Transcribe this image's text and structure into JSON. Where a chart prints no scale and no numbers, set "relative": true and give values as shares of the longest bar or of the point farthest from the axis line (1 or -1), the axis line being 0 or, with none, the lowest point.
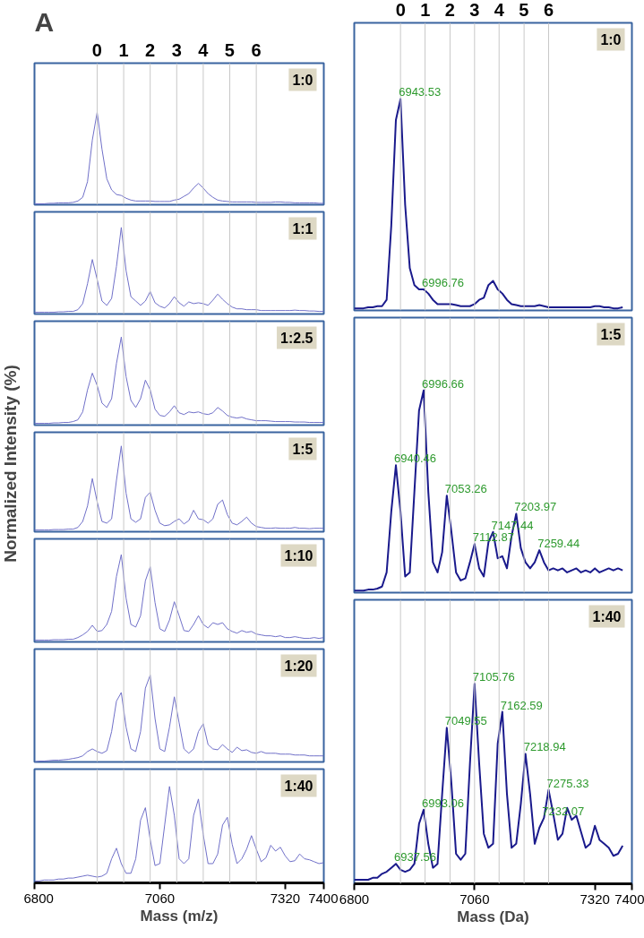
{
  "chart_data": [
    {
      "type": "line",
      "relative": true,
      "title": "A",
      "color": "#7070c8",
      "xlim": [
        6800,
        7400
      ],
      "tick_labels": "x2",
      "x2lim": [
        -2.36,
        8.55
      ],
      "x2ticks": [
        0,
        1,
        2,
        3,
        4,
        5,
        6
      ],
      "annotations": [
        "1:0"
      ],
      "ref_lines": [
        {
          "axis": "x",
          "value": 6930
        },
        {
          "axis": "x",
          "value": 6985
        },
        {
          "axis": "x",
          "value": 7040
        },
        {
          "axis": "x",
          "value": 7095
        },
        {
          "axis": "x",
          "value": 7150
        },
        {
          "axis": "x",
          "value": 7205
        },
        {
          "axis": "x",
          "value": 7260
        }
      ],
      "x": [
        6800,
        6810,
        6820,
        6830,
        6840,
        6850,
        6860,
        6870,
        6880,
        6890,
        6900,
        6910,
        6920,
        6930,
        6940,
        6950,
        6960,
        6970,
        6980,
        6990,
        7000,
        7010,
        7020,
        7030,
        7040,
        7050,
        7060,
        7070,
        7080,
        7090,
        7100,
        7110,
        7120,
        7130,
        7140,
        7150,
        7160,
        7170,
        7180,
        7190,
        7200,
        7210,
        7220,
        7230,
        7240,
        7250,
        7260,
        7270,
        7280,
        7290,
        7300,
        7310,
        7320,
        7330,
        7340,
        7350,
        7360,
        7370,
        7380,
        7390,
        7400
      ],
      "values": [
        0.01,
        0.01,
        0.01,
        0.015,
        0.015,
        0.02,
        0.02,
        0.02,
        0.025,
        0.04,
        0.08,
        0.25,
        0.7,
        1.0,
        0.6,
        0.28,
        0.16,
        0.11,
        0.1,
        0.07,
        0.05,
        0.04,
        0.04,
        0.04,
        0.04,
        0.035,
        0.035,
        0.035,
        0.035,
        0.05,
        0.06,
        0.09,
        0.12,
        0.18,
        0.23,
        0.18,
        0.12,
        0.08,
        0.05,
        0.04,
        0.035,
        0.03,
        0.03,
        0.03,
        0.03,
        0.03,
        0.025,
        0.025,
        0.025,
        0.025,
        0.03,
        0.03,
        0.025,
        0.025,
        0.02,
        0.02,
        0.02,
        0.02,
        0.02,
        0.015,
        0.015
      ]
    },
    {
      "type": "line",
      "relative": true,
      "color": "#7070c8",
      "xlim": [
        6800,
        7400
      ],
      "tick_labels": false,
      "annotations": [
        "1:1"
      ],
      "ref_lines": [
        {
          "axis": "x",
          "value": 6930
        },
        {
          "axis": "x",
          "value": 6985
        },
        {
          "axis": "x",
          "value": 7040
        },
        {
          "axis": "x",
          "value": 7095
        },
        {
          "axis": "x",
          "value": 7150
        },
        {
          "axis": "x",
          "value": 7205
        },
        {
          "axis": "x",
          "value": 7260
        }
      ],
      "x": [
        6800,
        6810,
        6820,
        6830,
        6840,
        6850,
        6860,
        6870,
        6880,
        6890,
        6900,
        6910,
        6920,
        6930,
        6940,
        6950,
        6960,
        6970,
        6980,
        6990,
        7000,
        7010,
        7020,
        7030,
        7040,
        7050,
        7060,
        7070,
        7080,
        7090,
        7100,
        7110,
        7120,
        7130,
        7140,
        7150,
        7160,
        7170,
        7180,
        7190,
        7200,
        7210,
        7220,
        7230,
        7240,
        7250,
        7260,
        7270,
        7280,
        7290,
        7300,
        7310,
        7320,
        7330,
        7340,
        7350,
        7360,
        7370,
        7380,
        7390,
        7400
      ],
      "values": [
        0.02,
        0.02,
        0.02,
        0.02,
        0.02,
        0.025,
        0.025,
        0.03,
        0.03,
        0.05,
        0.12,
        0.35,
        0.63,
        0.4,
        0.15,
        0.1,
        0.18,
        0.55,
        1.0,
        0.5,
        0.2,
        0.15,
        0.1,
        0.15,
        0.26,
        0.13,
        0.09,
        0.07,
        0.12,
        0.2,
        0.13,
        0.09,
        0.14,
        0.12,
        0.13,
        0.12,
        0.1,
        0.16,
        0.23,
        0.17,
        0.12,
        0.08,
        0.06,
        0.06,
        0.05,
        0.05,
        0.05,
        0.04,
        0.04,
        0.04,
        0.04,
        0.04,
        0.04,
        0.04,
        0.045,
        0.04,
        0.04,
        0.035,
        0.035,
        0.03,
        0.03
      ]
    },
    {
      "type": "line",
      "relative": true,
      "color": "#7070c8",
      "xlim": [
        6800,
        7400
      ],
      "tick_labels": false,
      "annotations": [
        "1:2.5"
      ],
      "ref_lines": [
        {
          "axis": "x",
          "value": 6930
        },
        {
          "axis": "x",
          "value": 6985
        },
        {
          "axis": "x",
          "value": 7040
        },
        {
          "axis": "x",
          "value": 7095
        },
        {
          "axis": "x",
          "value": 7150
        },
        {
          "axis": "x",
          "value": 7205
        },
        {
          "axis": "x",
          "value": 7260
        }
      ],
      "x": [
        6800,
        6810,
        6820,
        6830,
        6840,
        6850,
        6860,
        6870,
        6880,
        6890,
        6900,
        6910,
        6920,
        6930,
        6940,
        6950,
        6960,
        6970,
        6980,
        6990,
        7000,
        7010,
        7020,
        7030,
        7040,
        7050,
        7060,
        7070,
        7080,
        7090,
        7100,
        7110,
        7120,
        7130,
        7140,
        7150,
        7160,
        7170,
        7180,
        7190,
        7200,
        7210,
        7220,
        7230,
        7240,
        7250,
        7260,
        7270,
        7280,
        7290,
        7300,
        7310,
        7320,
        7330,
        7340,
        7350,
        7360,
        7370,
        7380,
        7390,
        7400
      ],
      "values": [
        0.02,
        0.02,
        0.02,
        0.02,
        0.025,
        0.025,
        0.03,
        0.03,
        0.04,
        0.06,
        0.15,
        0.4,
        0.59,
        0.45,
        0.25,
        0.2,
        0.3,
        0.7,
        1.0,
        0.55,
        0.28,
        0.2,
        0.3,
        0.51,
        0.4,
        0.18,
        0.11,
        0.1,
        0.15,
        0.22,
        0.14,
        0.12,
        0.15,
        0.14,
        0.15,
        0.13,
        0.12,
        0.14,
        0.2,
        0.16,
        0.11,
        0.09,
        0.08,
        0.09,
        0.07,
        0.06,
        0.05,
        0.05,
        0.05,
        0.045,
        0.04,
        0.04,
        0.04,
        0.04,
        0.035,
        0.035,
        0.035,
        0.03,
        0.03,
        0.03,
        0.03
      ]
    },
    {
      "type": "line",
      "relative": true,
      "color": "#7070c8",
      "xlim": [
        6800,
        7400
      ],
      "tick_labels": false,
      "ylabel": "Normalized Intensity (%)",
      "annotations": [
        "1:5"
      ],
      "ref_lines": [
        {
          "axis": "x",
          "value": 6930
        },
        {
          "axis": "x",
          "value": 6985
        },
        {
          "axis": "x",
          "value": 7040
        },
        {
          "axis": "x",
          "value": 7095
        },
        {
          "axis": "x",
          "value": 7150
        },
        {
          "axis": "x",
          "value": 7205
        },
        {
          "axis": "x",
          "value": 7260
        }
      ],
      "x": [
        6800,
        6810,
        6820,
        6830,
        6840,
        6850,
        6860,
        6870,
        6880,
        6890,
        6900,
        6910,
        6920,
        6930,
        6940,
        6950,
        6960,
        6970,
        6980,
        6990,
        7000,
        7010,
        7020,
        7030,
        7040,
        7050,
        7060,
        7070,
        7080,
        7090,
        7100,
        7110,
        7120,
        7130,
        7140,
        7150,
        7160,
        7170,
        7180,
        7190,
        7200,
        7210,
        7220,
        7230,
        7240,
        7250,
        7260,
        7270,
        7280,
        7290,
        7300,
        7310,
        7320,
        7330,
        7340,
        7350,
        7360,
        7370,
        7380,
        7390,
        7400
      ],
      "values": [
        0.02,
        0.02,
        0.02,
        0.02,
        0.025,
        0.025,
        0.025,
        0.03,
        0.03,
        0.05,
        0.12,
        0.3,
        0.62,
        0.35,
        0.12,
        0.1,
        0.15,
        0.6,
        1.0,
        0.45,
        0.15,
        0.11,
        0.15,
        0.4,
        0.46,
        0.25,
        0.1,
        0.07,
        0.08,
        0.12,
        0.15,
        0.09,
        0.13,
        0.25,
        0.15,
        0.14,
        0.1,
        0.15,
        0.32,
        0.37,
        0.2,
        0.1,
        0.08,
        0.12,
        0.17,
        0.1,
        0.06,
        0.05,
        0.04,
        0.04,
        0.045,
        0.04,
        0.04,
        0.04,
        0.05,
        0.04,
        0.04,
        0.035,
        0.04,
        0.04,
        0.04
      ]
    },
    {
      "type": "line",
      "relative": true,
      "color": "#7070c8",
      "xlim": [
        6800,
        7400
      ],
      "tick_labels": false,
      "annotations": [
        "1:10"
      ],
      "ref_lines": [
        {
          "axis": "x",
          "value": 6930
        },
        {
          "axis": "x",
          "value": 6985
        },
        {
          "axis": "x",
          "value": 7040
        },
        {
          "axis": "x",
          "value": 7095
        },
        {
          "axis": "x",
          "value": 7150
        },
        {
          "axis": "x",
          "value": 7205
        },
        {
          "axis": "x",
          "value": 7260
        }
      ],
      "x": [
        6800,
        6810,
        6820,
        6830,
        6840,
        6850,
        6860,
        6870,
        6880,
        6890,
        6900,
        6910,
        6920,
        6930,
        6940,
        6950,
        6960,
        6970,
        6980,
        6990,
        7000,
        7010,
        7020,
        7030,
        7040,
        7050,
        7060,
        7070,
        7080,
        7090,
        7100,
        7110,
        7120,
        7130,
        7140,
        7150,
        7160,
        7170,
        7180,
        7190,
        7200,
        7210,
        7220,
        7230,
        7240,
        7250,
        7260,
        7270,
        7280,
        7290,
        7300,
        7310,
        7320,
        7330,
        7340,
        7350,
        7360,
        7370,
        7380,
        7390,
        7400
      ],
      "values": [
        0.02,
        0.02,
        0.02,
        0.02,
        0.025,
        0.025,
        0.025,
        0.03,
        0.03,
        0.05,
        0.08,
        0.12,
        0.19,
        0.12,
        0.13,
        0.2,
        0.35,
        0.75,
        1.0,
        0.5,
        0.2,
        0.17,
        0.3,
        0.7,
        0.86,
        0.45,
        0.15,
        0.12,
        0.25,
        0.46,
        0.3,
        0.13,
        0.12,
        0.2,
        0.3,
        0.2,
        0.16,
        0.22,
        0.2,
        0.22,
        0.15,
        0.12,
        0.1,
        0.13,
        0.11,
        0.12,
        0.09,
        0.08,
        0.07,
        0.07,
        0.06,
        0.07,
        0.05,
        0.05,
        0.06,
        0.05,
        0.04,
        0.04,
        0.05,
        0.04,
        0.05
      ]
    },
    {
      "type": "line",
      "relative": true,
      "color": "#7070c8",
      "xlim": [
        6800,
        7400
      ],
      "tick_labels": false,
      "annotations": [
        "1:20"
      ],
      "ref_lines": [
        {
          "axis": "x",
          "value": 6930
        },
        {
          "axis": "x",
          "value": 6985
        },
        {
          "axis": "x",
          "value": 7040
        },
        {
          "axis": "x",
          "value": 7095
        },
        {
          "axis": "x",
          "value": 7150
        },
        {
          "axis": "x",
          "value": 7205
        },
        {
          "axis": "x",
          "value": 7260
        }
      ],
      "x": [
        6800,
        6810,
        6820,
        6830,
        6840,
        6850,
        6860,
        6870,
        6880,
        6890,
        6900,
        6910,
        6920,
        6930,
        6940,
        6950,
        6960,
        6970,
        6980,
        6990,
        7000,
        7010,
        7020,
        7030,
        7040,
        7050,
        7060,
        7070,
        7080,
        7090,
        7100,
        7110,
        7120,
        7130,
        7140,
        7150,
        7160,
        7170,
        7180,
        7190,
        7200,
        7210,
        7220,
        7230,
        7240,
        7250,
        7260,
        7270,
        7280,
        7290,
        7300,
        7310,
        7320,
        7330,
        7340,
        7350,
        7360,
        7370,
        7380,
        7390,
        7400
      ],
      "values": [
        0.0,
        0.01,
        0.01,
        0.015,
        0.02,
        0.02,
        0.025,
        0.03,
        0.04,
        0.05,
        0.07,
        0.12,
        0.15,
        0.12,
        0.1,
        0.13,
        0.35,
        0.7,
        0.8,
        0.4,
        0.15,
        0.12,
        0.35,
        0.85,
        1.0,
        0.5,
        0.15,
        0.12,
        0.4,
        0.75,
        0.45,
        0.15,
        0.1,
        0.15,
        0.35,
        0.44,
        0.2,
        0.15,
        0.14,
        0.2,
        0.15,
        0.11,
        0.17,
        0.13,
        0.14,
        0.11,
        0.1,
        0.12,
        0.1,
        0.1,
        0.1,
        0.09,
        0.09,
        0.09,
        0.08,
        0.08,
        0.08,
        0.07,
        0.07,
        0.07,
        0.07
      ]
    },
    {
      "type": "line",
      "relative": true,
      "color": "#7070c8",
      "xlim": [
        6800,
        7400
      ],
      "xticks": [
        6800,
        7060,
        7320,
        7400
      ],
      "tick_labels": "x",
      "xlabel": "Mass (m/z)",
      "annotations": [
        "1:40"
      ],
      "ref_lines": [
        {
          "axis": "x",
          "value": 6930
        },
        {
          "axis": "x",
          "value": 6985
        },
        {
          "axis": "x",
          "value": 7040
        },
        {
          "axis": "x",
          "value": 7095
        },
        {
          "axis": "x",
          "value": 7150
        },
        {
          "axis": "x",
          "value": 7205
        },
        {
          "axis": "x",
          "value": 7260
        }
      ],
      "x": [
        6800,
        6810,
        6820,
        6830,
        6840,
        6850,
        6860,
        6870,
        6880,
        6890,
        6900,
        6910,
        6920,
        6930,
        6940,
        6950,
        6960,
        6970,
        6980,
        6990,
        7000,
        7010,
        7020,
        7030,
        7040,
        7050,
        7060,
        7070,
        7080,
        7090,
        7100,
        7110,
        7120,
        7130,
        7140,
        7150,
        7160,
        7170,
        7180,
        7190,
        7200,
        7210,
        7220,
        7230,
        7240,
        7250,
        7260,
        7270,
        7280,
        7290,
        7300,
        7310,
        7320,
        7330,
        7340,
        7350,
        7360,
        7370,
        7380,
        7390,
        7400
      ],
      "values": [
        0.02,
        0.02,
        0.03,
        0.03,
        0.03,
        0.04,
        0.04,
        0.05,
        0.05,
        0.06,
        0.07,
        0.08,
        0.07,
        0.06,
        0.07,
        0.1,
        0.25,
        0.36,
        0.2,
        0.1,
        0.1,
        0.25,
        0.65,
        0.78,
        0.45,
        0.18,
        0.2,
        0.6,
        1.0,
        0.7,
        0.25,
        0.2,
        0.25,
        0.7,
        0.87,
        0.5,
        0.2,
        0.2,
        0.3,
        0.6,
        0.68,
        0.4,
        0.2,
        0.25,
        0.35,
        0.49,
        0.35,
        0.22,
        0.26,
        0.39,
        0.33,
        0.37,
        0.28,
        0.22,
        0.23,
        0.3,
        0.25,
        0.24,
        0.22,
        0.2,
        0.21
      ]
    },
    {
      "type": "line",
      "relative": true,
      "color": "#1a1a8c",
      "xlim": [
        6800,
        7400
      ],
      "tick_labels": "x2",
      "x2lim": [
        -1.88,
        9.38
      ],
      "x2ticks": [
        0,
        1,
        2,
        3,
        4,
        5,
        6
      ],
      "annotations": [
        "1:0",
        {
          "text": "6943.53",
          "x": 6900,
          "y": 1.0
        },
        {
          "text": "6996.76",
          "x": 6950,
          "y": 0.1
        }
      ],
      "ref_lines": [
        {
          "axis": "x",
          "value": 6900
        },
        {
          "axis": "x",
          "value": 6953
        },
        {
          "axis": "x",
          "value": 7007
        },
        {
          "axis": "x",
          "value": 7060
        },
        {
          "axis": "x",
          "value": 7113
        },
        {
          "axis": "x",
          "value": 7167
        },
        {
          "axis": "x",
          "value": 7220
        }
      ],
      "x": [
        6800,
        6810,
        6820,
        6830,
        6840,
        6850,
        6860,
        6870,
        6880,
        6890,
        6900,
        6910,
        6920,
        6930,
        6940,
        6950,
        6960,
        6970,
        6980,
        6990,
        7000,
        7010,
        7020,
        7030,
        7040,
        7050,
        7060,
        7070,
        7080,
        7090,
        7100,
        7110,
        7120,
        7130,
        7140,
        7150,
        7160,
        7170,
        7180,
        7190,
        7200,
        7210,
        7220,
        7230,
        7240,
        7250,
        7260,
        7270,
        7280,
        7290,
        7300,
        7310,
        7320,
        7330,
        7340,
        7350,
        7360,
        7370,
        7380
      ],
      "values": [
        0.01,
        0.01,
        0.01,
        0.015,
        0.015,
        0.02,
        0.02,
        0.05,
        0.4,
        0.9,
        1.0,
        0.5,
        0.2,
        0.12,
        0.1,
        0.1,
        0.08,
        0.05,
        0.03,
        0.03,
        0.03,
        0.03,
        0.025,
        0.02,
        0.02,
        0.02,
        0.03,
        0.05,
        0.06,
        0.12,
        0.14,
        0.1,
        0.08,
        0.05,
        0.03,
        0.025,
        0.02,
        0.02,
        0.02,
        0.02,
        0.025,
        0.02,
        0.015,
        0.015,
        0.015,
        0.015,
        0.015,
        0.015,
        0.015,
        0.015,
        0.015,
        0.015,
        0.02,
        0.02,
        0.015,
        0.015,
        0.01,
        0.01,
        0.015
      ]
    },
    {
      "type": "line",
      "relative": true,
      "color": "#1a1a8c",
      "xlim": [
        6800,
        7400
      ],
      "tick_labels": false,
      "annotations": [
        "1:5",
        {
          "text": "6940.46",
          "x": 6890,
          "y": 0.63
        },
        {
          "text": "6996.66",
          "x": 6950,
          "y": 1.0
        },
        {
          "text": "7053.26",
          "x": 7000,
          "y": 0.48
        },
        {
          "text": "7112.87",
          "x": 7060,
          "y": 0.24
        },
        {
          "text": "7147.44",
          "x": 7100,
          "y": 0.3
        },
        {
          "text": "7203.97",
          "x": 7150,
          "y": 0.39
        },
        {
          "text": "7259.44",
          "x": 7200,
          "y": 0.21
        }
      ],
      "ref_lines": [
        {
          "axis": "x",
          "value": 6900
        },
        {
          "axis": "x",
          "value": 6953
        },
        {
          "axis": "x",
          "value": 7007
        },
        {
          "axis": "x",
          "value": 7060
        },
        {
          "axis": "x",
          "value": 7113
        },
        {
          "axis": "x",
          "value": 7167
        },
        {
          "axis": "x",
          "value": 7220
        }
      ],
      "x": [
        6800,
        6810,
        6820,
        6830,
        6840,
        6850,
        6860,
        6870,
        6880,
        6890,
        6900,
        6910,
        6920,
        6930,
        6940,
        6950,
        6960,
        6970,
        6980,
        6990,
        7000,
        7010,
        7020,
        7030,
        7040,
        7050,
        7060,
        7070,
        7080,
        7090,
        7100,
        7110,
        7120,
        7130,
        7140,
        7150,
        7160,
        7170,
        7180,
        7190,
        7200,
        7210,
        7220,
        7230,
        7240,
        7250,
        7260,
        7270,
        7280,
        7290,
        7300,
        7310,
        7320,
        7330,
        7340,
        7350,
        7360,
        7370,
        7380
      ],
      "values": [
        0.01,
        0.01,
        0.01,
        0.015,
        0.015,
        0.02,
        0.03,
        0.1,
        0.4,
        0.63,
        0.4,
        0.08,
        0.1,
        0.5,
        0.9,
        1.0,
        0.5,
        0.15,
        0.1,
        0.2,
        0.48,
        0.3,
        0.1,
        0.06,
        0.07,
        0.15,
        0.24,
        0.12,
        0.08,
        0.25,
        0.3,
        0.17,
        0.18,
        0.12,
        0.28,
        0.39,
        0.22,
        0.15,
        0.12,
        0.15,
        0.21,
        0.15,
        0.11,
        0.12,
        0.11,
        0.12,
        0.1,
        0.11,
        0.12,
        0.1,
        0.11,
        0.1,
        0.12,
        0.1,
        0.11,
        0.12,
        0.11,
        0.12,
        0.11
      ]
    },
    {
      "type": "line",
      "relative": true,
      "color": "#1a1a8c",
      "xlim": [
        6800,
        7400
      ],
      "xticks": [
        6800,
        7060,
        7320,
        7400
      ],
      "tick_labels": "x",
      "xlabel": "Mass (Da)",
      "annotations": [
        "1:40",
        {
          "text": "6937.56",
          "x": 6890,
          "y": 0.1
        },
        {
          "text": "6993.06",
          "x": 6950,
          "y": 0.37
        },
        {
          "text": "7049.55",
          "x": 7000,
          "y": 0.78
        },
        {
          "text": "7105.76",
          "x": 7060,
          "y": 1.0
        },
        {
          "text": "7162.59",
          "x": 7120,
          "y": 0.86
        },
        {
          "text": "7218.94",
          "x": 7170,
          "y": 0.65
        },
        {
          "text": "7275.33",
          "x": 7220,
          "y": 0.47
        },
        {
          "text": "7232.07",
          "x": 7210,
          "y": 0.33
        }
      ],
      "ref_lines": [
        {
          "axis": "x",
          "value": 6900
        },
        {
          "axis": "x",
          "value": 6953
        },
        {
          "axis": "x",
          "value": 7007
        },
        {
          "axis": "x",
          "value": 7060
        },
        {
          "axis": "x",
          "value": 7113
        },
        {
          "axis": "x",
          "value": 7167
        },
        {
          "axis": "x",
          "value": 7220
        }
      ],
      "x": [
        6800,
        6810,
        6820,
        6830,
        6840,
        6850,
        6860,
        6870,
        6880,
        6890,
        6900,
        6910,
        6920,
        6930,
        6940,
        6950,
        6960,
        6970,
        6980,
        6990,
        7000,
        7010,
        7020,
        7030,
        7040,
        7050,
        7060,
        7070,
        7080,
        7090,
        7100,
        7110,
        7120,
        7130,
        7140,
        7150,
        7160,
        7170,
        7180,
        7190,
        7200,
        7210,
        7220,
        7230,
        7240,
        7250,
        7260,
        7270,
        7280,
        7290,
        7300,
        7310,
        7320,
        7330,
        7340,
        7350,
        7360,
        7370,
        7380
      ],
      "values": [
        0.02,
        0.02,
        0.02,
        0.02,
        0.03,
        0.03,
        0.05,
        0.06,
        0.08,
        0.1,
        0.07,
        0.06,
        0.07,
        0.1,
        0.3,
        0.37,
        0.2,
        0.08,
        0.1,
        0.45,
        0.78,
        0.5,
        0.15,
        0.12,
        0.15,
        0.6,
        1.0,
        0.6,
        0.25,
        0.18,
        0.2,
        0.7,
        0.86,
        0.45,
        0.18,
        0.2,
        0.4,
        0.65,
        0.45,
        0.2,
        0.28,
        0.33,
        0.47,
        0.35,
        0.22,
        0.25,
        0.38,
        0.32,
        0.34,
        0.26,
        0.18,
        0.2,
        0.29,
        0.22,
        0.2,
        0.18,
        0.14,
        0.15,
        0.19
      ]
    }
  ]
}
